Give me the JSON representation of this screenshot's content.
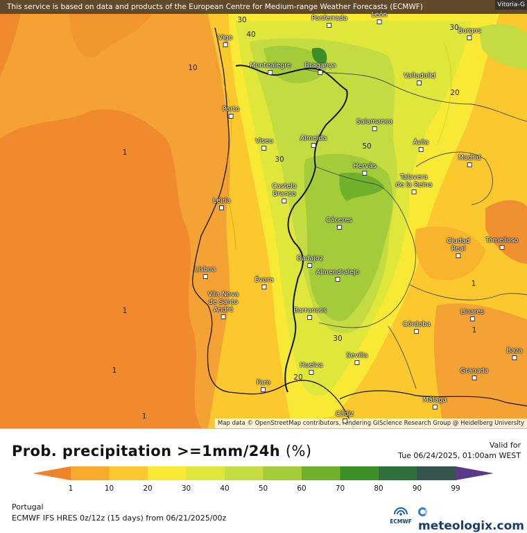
{
  "map": {
    "attribution_top": "This service is based on data and products of the European Centre for Medium-range Weather Forecasts (ECMWF)",
    "attribution_corner": "Vitoria-G",
    "attribution_bottom": "Map data © OpenStreetMap contributors, rendering GIScience Research Group @ Heidelberg University",
    "cities": [
      {
        "name": "Ponferrada",
        "lines": [
          "Ponferrada"
        ]
      },
      {
        "name": "Leon",
        "lines": [
          "León"
        ]
      },
      {
        "name": "Vigo",
        "lines": [
          "Vigo"
        ]
      },
      {
        "name": "Burgos",
        "lines": [
          "Burgos"
        ]
      },
      {
        "name": "Montealegre",
        "lines": [
          "Montealegre"
        ]
      },
      {
        "name": "Braganca",
        "lines": [
          "Bragança"
        ]
      },
      {
        "name": "Valladolid",
        "lines": [
          "Valladolid"
        ]
      },
      {
        "name": "Porto",
        "lines": [
          "Porto"
        ]
      },
      {
        "name": "Salamanca",
        "lines": [
          "Salamanca"
        ]
      },
      {
        "name": "Viseu",
        "lines": [
          "Viseu"
        ]
      },
      {
        "name": "Almeida",
        "lines": [
          "Almeida"
        ]
      },
      {
        "name": "Avila",
        "lines": [
          "Ávila"
        ]
      },
      {
        "name": "Madrid",
        "lines": [
          "Madrid"
        ]
      },
      {
        "name": "Hervas",
        "lines": [
          "Hervás"
        ]
      },
      {
        "name": "Talavera",
        "lines": [
          "Talavera",
          "de la Reina"
        ]
      },
      {
        "name": "Castelo Branco",
        "lines": [
          "Castelo",
          "Branco"
        ]
      },
      {
        "name": "Leiria",
        "lines": [
          "Leiria"
        ]
      },
      {
        "name": "Caceres",
        "lines": [
          "Cáceres"
        ]
      },
      {
        "name": "Ciudad Real",
        "lines": [
          "Ciudad",
          "Real"
        ]
      },
      {
        "name": "Tomelloso",
        "lines": [
          "Tomelloso"
        ]
      },
      {
        "name": "Badajoz",
        "lines": [
          "Badajoz"
        ]
      },
      {
        "name": "Lisboa",
        "lines": [
          "Lisboa"
        ]
      },
      {
        "name": "Almendralejo",
        "lines": [
          "Almendralejo"
        ]
      },
      {
        "name": "Evora",
        "lines": [
          "Évora"
        ]
      },
      {
        "name": "Vila Nova de Santo Andre",
        "lines": [
          "Vila Nova",
          "de Santo",
          "André"
        ]
      },
      {
        "name": "Barrancos",
        "lines": [
          "Barrancos"
        ]
      },
      {
        "name": "Linares",
        "lines": [
          "Linares"
        ]
      },
      {
        "name": "Cordoba",
        "lines": [
          "Córdoba"
        ]
      },
      {
        "name": "Sevilla",
        "lines": [
          "Sevilla"
        ]
      },
      {
        "name": "Baza",
        "lines": [
          "Baza"
        ]
      },
      {
        "name": "Huelva",
        "lines": [
          "Huelva"
        ]
      },
      {
        "name": "Granada",
        "lines": [
          "Granada"
        ]
      },
      {
        "name": "Faro",
        "lines": [
          "Faro"
        ]
      },
      {
        "name": "Malaga",
        "lines": [
          "Málaga"
        ]
      },
      {
        "name": "Cadiz",
        "lines": [
          "Cádiz"
        ]
      }
    ],
    "contour_labels": [
      "30",
      "40",
      "30",
      "10",
      "20",
      "1",
      "30",
      "50",
      "1",
      "1",
      "1",
      "30",
      "1",
      "20",
      "1"
    ]
  },
  "legend": {
    "title": "Prob. precipitation >=1mm/24h",
    "unit": "(%)",
    "valid_label": "Valid for",
    "valid_value": "Tue 06/24/2025, 01:00am WEST",
    "ticks": [
      "1",
      "10",
      "20",
      "30",
      "40",
      "50",
      "60",
      "70",
      "80",
      "90",
      "99"
    ],
    "colors": [
      "#f0832a",
      "#f7aa2c",
      "#fbc92e",
      "#f8ea34",
      "#dfe73b",
      "#c4dc41",
      "#a4cc3a",
      "#6fb12b",
      "#3c8f27",
      "#2f6f3c",
      "#34564e",
      "#5b3a8c"
    ],
    "region": "Portugal",
    "model_info": "ECMWF IFS HRES 0z/12z (15 days)  from  06/21/2025/00z",
    "ecmwf_logo_text": "ECMWF",
    "brand": "meteologix.com"
  }
}
